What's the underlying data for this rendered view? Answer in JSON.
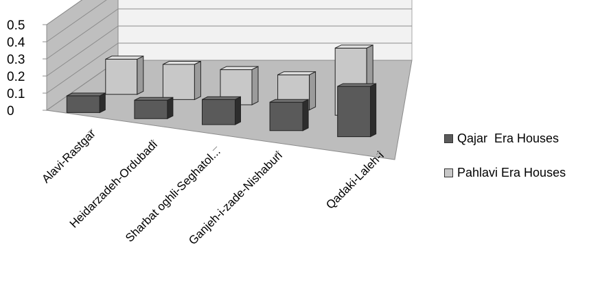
{
  "chart_data": {
    "type": "bar",
    "categories": [
      "Alavi-Rastgar",
      "Heidarzadeh-Ordubadi",
      "Sharbat oghli-Seghatol...",
      "Ganjeh-i-zade-Nishaburi",
      "Qadaki-Laleh-i"
    ],
    "series": [
      {
        "name": "Qajar  Era Houses",
        "values": [
          0.1,
          0.11,
          0.15,
          0.17,
          0.3
        ],
        "color": "#5a5a5a"
      },
      {
        "name": "Pahlavi Era Houses",
        "values": [
          0.21,
          0.21,
          0.21,
          0.21,
          0.4
        ],
        "color": "#c8c8c8"
      }
    ],
    "yticks": [
      "0",
      "0.1",
      "0.2",
      "0.3",
      "0.4",
      "0.5"
    ],
    "ylim": [
      0,
      0.5
    ],
    "grid": true,
    "legend": "right",
    "style": "3d-clustered"
  }
}
